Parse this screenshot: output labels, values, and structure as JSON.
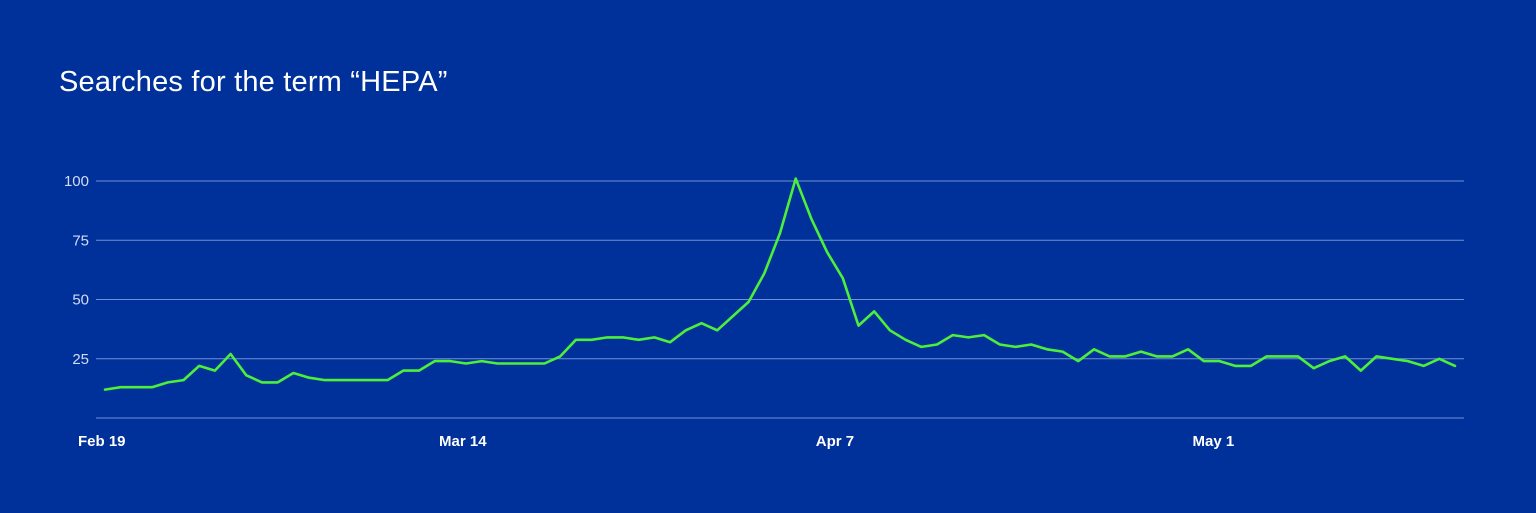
{
  "chart_data": {
    "type": "line",
    "title": "Searches for the term “HEPA”",
    "xlabel": "",
    "ylabel": "",
    "ylim": [
      0,
      100
    ],
    "yticks": [
      100,
      75,
      50,
      25
    ],
    "xticks": [
      {
        "label": "Feb 19",
        "index": 0
      },
      {
        "label": "Mar 14",
        "index": 23
      },
      {
        "label": "Apr 7",
        "index": 47
      },
      {
        "label": "May 1",
        "index": 71
      }
    ],
    "grid": true,
    "series": [
      {
        "name": "",
        "color": "#4cf03a",
        "values": [
          12,
          13,
          13,
          13,
          15,
          16,
          22,
          20,
          27,
          18,
          15,
          15,
          19,
          17,
          16,
          16,
          16,
          16,
          16,
          20,
          20,
          24,
          24,
          23,
          24,
          23,
          23,
          23,
          23,
          26,
          33,
          33,
          34,
          34,
          33,
          34,
          32,
          37,
          40,
          37,
          43,
          49,
          61,
          78,
          101,
          84,
          70,
          59,
          39,
          45,
          37,
          33,
          30,
          31,
          35,
          34,
          35,
          31,
          30,
          31,
          29,
          28,
          24,
          29,
          26,
          26,
          28,
          26,
          26,
          29,
          24,
          24,
          22,
          22,
          26,
          26,
          26,
          21,
          24,
          26,
          20,
          26,
          25,
          24,
          22,
          25,
          22
        ]
      }
    ]
  }
}
